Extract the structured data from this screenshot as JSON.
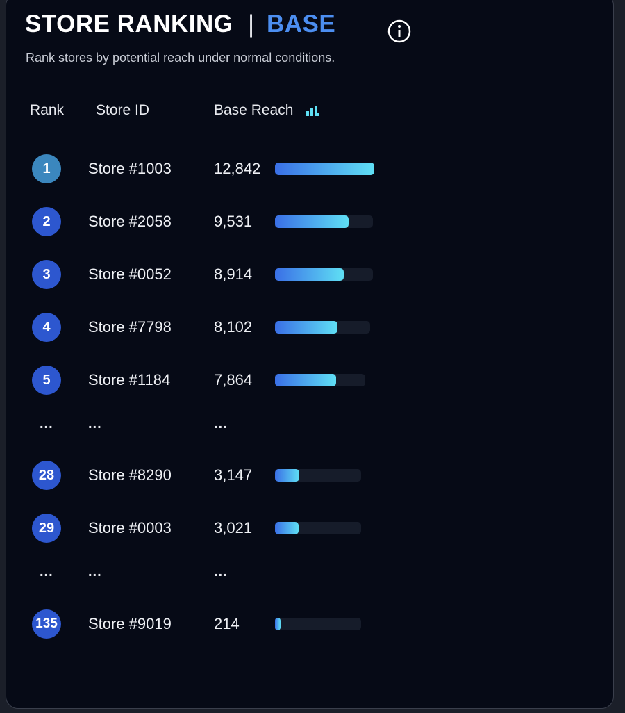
{
  "header": {
    "title": "STORE RANKING",
    "separator": "|",
    "subtitle_word": "BASE",
    "description": "Rank stores by potential reach under normal conditions."
  },
  "table": {
    "columns": [
      "Rank",
      "Store ID",
      "Base Reach"
    ],
    "rows": [
      {
        "rank": 1,
        "store": "Store #1003",
        "reach": {
          "value": 12842,
          "label": "12,842"
        }
      },
      {
        "rank": 2,
        "store": "Store #2058",
        "reach": {
          "value": 9531,
          "label": "9,531"
        }
      },
      {
        "rank": 3,
        "store": "Store #0052",
        "reach": {
          "value": 8914,
          "label": "8,914"
        }
      },
      {
        "rank": 4,
        "store": "Store #7798",
        "reach": {
          "value": 8102,
          "label": "8,102"
        }
      },
      {
        "rank": 5,
        "store": "Store #1184",
        "reach": {
          "value": 7864,
          "label": "7,864"
        }
      },
      {
        "rank": "...",
        "store": "...",
        "reach": "..."
      },
      {
        "rank": 28,
        "store": "Store #8290",
        "reach": {
          "value": 3147,
          "label": "3,147"
        }
      },
      {
        "rank": 29,
        "store": "Store #0003",
        "reach": {
          "value": 3021,
          "label": "3,021"
        }
      },
      {
        "rank": "...",
        "store": "...",
        "reach": "..."
      },
      {
        "rank": 135,
        "store": "Store #9019",
        "reach": {
          "value": 214,
          "label": "214"
        }
      }
    ]
  }
}
